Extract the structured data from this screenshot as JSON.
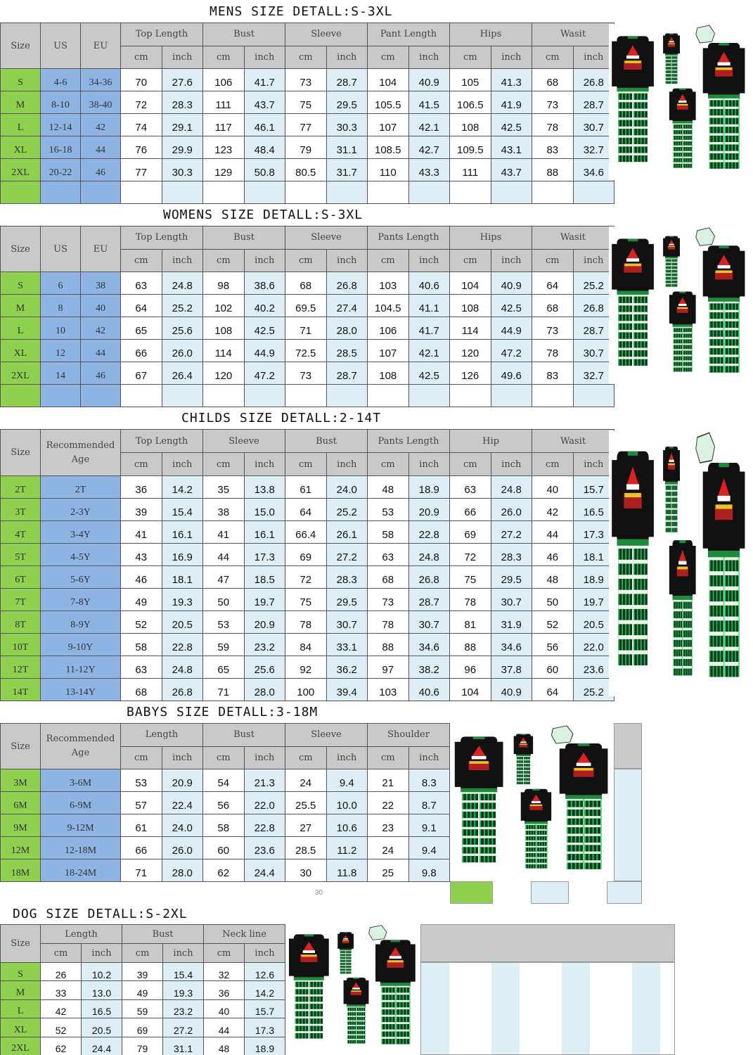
{
  "colors": {
    "header": "#c9c9c9",
    "size": "#8fd14f",
    "us_eu": "#8db4e2",
    "inch": "#ddeef6",
    "shirt": "#111111",
    "plaid": "#1f8a3c"
  },
  "units": [
    "cm",
    "inch"
  ],
  "mens": {
    "title": "MENS SIZE DETALL:S-3XL",
    "fixed": [
      "Size",
      "US",
      "EU"
    ],
    "groups": [
      "Top Length",
      "Bust",
      "Sleeve",
      "Pant Length",
      "Hips",
      "Wasit"
    ],
    "rows": [
      [
        "S",
        "4-6",
        "34-36",
        "70",
        "27.6",
        "106",
        "41.7",
        "73",
        "28.7",
        "104",
        "40.9",
        "105",
        "41.3",
        "68",
        "26.8"
      ],
      [
        "M",
        "8-10",
        "38-40",
        "72",
        "28.3",
        "111",
        "43.7",
        "75",
        "29.5",
        "105.5",
        "41.5",
        "106.5",
        "41.9",
        "73",
        "28.7"
      ],
      [
        "L",
        "12-14",
        "42",
        "74",
        "29.1",
        "117",
        "46.1",
        "77",
        "30.3",
        "107",
        "42.1",
        "108",
        "42.5",
        "78",
        "30.7"
      ],
      [
        "XL",
        "16-18",
        "44",
        "76",
        "29.9",
        "123",
        "48.4",
        "79",
        "31.1",
        "108.5",
        "42.7",
        "109.5",
        "43.1",
        "83",
        "32.7"
      ],
      [
        "2XL",
        "20-22",
        "46",
        "77",
        "30.3",
        "129",
        "50.8",
        "80.5",
        "31.7",
        "110",
        "43.3",
        "111",
        "43.7",
        "88",
        "34.6"
      ],
      [
        "",
        "",
        "",
        "",
        "",
        "",
        "",
        "",
        "",
        "",
        "",
        "",
        "",
        "",
        ""
      ]
    ]
  },
  "womens": {
    "title": "WOMENS SIZE DETALL:S-3XL",
    "fixed": [
      "Size",
      "US",
      "EU"
    ],
    "groups": [
      "Top Length",
      "Bust",
      "Sleeve",
      "Pants Length",
      "Hips",
      "Wasit"
    ],
    "rows": [
      [
        "S",
        "6",
        "38",
        "63",
        "24.8",
        "98",
        "38.6",
        "68",
        "26.8",
        "103",
        "40.6",
        "104",
        "40.9",
        "64",
        "25.2"
      ],
      [
        "M",
        "8",
        "40",
        "64",
        "25.2",
        "102",
        "40.2",
        "69.5",
        "27.4",
        "104.5",
        "41.1",
        "108",
        "42.5",
        "68",
        "26.8"
      ],
      [
        "L",
        "10",
        "42",
        "65",
        "25.6",
        "108",
        "42.5",
        "71",
        "28.0",
        "106",
        "41.7",
        "114",
        "44.9",
        "73",
        "28.7"
      ],
      [
        "XL",
        "12",
        "44",
        "66",
        "26.0",
        "114",
        "44.9",
        "72.5",
        "28.5",
        "107",
        "42.1",
        "120",
        "47.2",
        "78",
        "30.7"
      ],
      [
        "2XL",
        "14",
        "46",
        "67",
        "26.4",
        "120",
        "47.2",
        "73",
        "28.7",
        "108",
        "42.5",
        "126",
        "49.6",
        "83",
        "32.7"
      ],
      [
        "",
        "",
        "",
        "",
        "",
        "",
        "",
        "",
        "",
        "",
        "",
        "",
        "",
        "",
        ""
      ]
    ]
  },
  "childs": {
    "title": "CHILDS SIZE DETALL:2-14T",
    "fixed": [
      "Size",
      "Recommended Age"
    ],
    "groups": [
      "Top Length",
      "Sleeve",
      "Bust",
      "Pants Length",
      "Hip",
      "Wasit"
    ],
    "rows": [
      [
        "2T",
        "2T",
        "36",
        "14.2",
        "35",
        "13.8",
        "61",
        "24.0",
        "48",
        "18.9",
        "63",
        "24.8",
        "40",
        "15.7"
      ],
      [
        "3T",
        "2-3Y",
        "39",
        "15.4",
        "38",
        "15.0",
        "64",
        "25.2",
        "53",
        "20.9",
        "66",
        "26.0",
        "42",
        "16.5"
      ],
      [
        "4T",
        "3-4Y",
        "41",
        "16.1",
        "41",
        "16.1",
        "66.4",
        "26.1",
        "58",
        "22.8",
        "69",
        "27.2",
        "44",
        "17.3"
      ],
      [
        "5T",
        "4-5Y",
        "43",
        "16.9",
        "44",
        "17.3",
        "69",
        "27.2",
        "63",
        "24.8",
        "72",
        "28.3",
        "46",
        "18.1"
      ],
      [
        "6T",
        "5-6Y",
        "46",
        "18.1",
        "47",
        "18.5",
        "72",
        "28.3",
        "68",
        "26.8",
        "75",
        "29.5",
        "48",
        "18.9"
      ],
      [
        "7T",
        "7-8Y",
        "49",
        "19.3",
        "50",
        "19.7",
        "75",
        "29.5",
        "73",
        "28.7",
        "78",
        "30.7",
        "50",
        "19.7"
      ],
      [
        "8T",
        "8-9Y",
        "52",
        "20.5",
        "53",
        "20.9",
        "78",
        "30.7",
        "78",
        "30.7",
        "81",
        "31.9",
        "52",
        "20.5"
      ],
      [
        "10T",
        "9-10Y",
        "58",
        "22.8",
        "59",
        "23.2",
        "84",
        "33.1",
        "88",
        "34.6",
        "88",
        "34.6",
        "56",
        "22.0"
      ],
      [
        "12T",
        "11-12Y",
        "63",
        "24.8",
        "65",
        "25.6",
        "92",
        "36.2",
        "97",
        "38.2",
        "96",
        "37.8",
        "60",
        "23.6"
      ],
      [
        "14T",
        "13-14Y",
        "68",
        "26.8",
        "71",
        "28.0",
        "100",
        "39.4",
        "103",
        "40.6",
        "104",
        "40.9",
        "64",
        "25.2"
      ]
    ]
  },
  "babys": {
    "title": "BABYS SIZE DETALL:3-18M",
    "fixed": [
      "Size",
      "Recommended Age"
    ],
    "groups": [
      "Length",
      "Bust",
      "Sleeve",
      "Shoulder"
    ],
    "rows": [
      [
        "3M",
        "3-6M",
        "53",
        "20.9",
        "54",
        "21.3",
        "24",
        "9.4",
        "21",
        "8.3"
      ],
      [
        "6M",
        "6-9M",
        "57",
        "22.4",
        "56",
        "22.0",
        "25.5",
        "10.0",
        "22",
        "8.7"
      ],
      [
        "9M",
        "9-12M",
        "61",
        "24.0",
        "58",
        "22.8",
        "27",
        "10.6",
        "23",
        "9.1"
      ],
      [
        "12M",
        "12-18M",
        "66",
        "26.0",
        "60",
        "23.6",
        "28.5",
        "11.2",
        "24",
        "9.4"
      ],
      [
        "18M",
        "18-24M",
        "71",
        "28.0",
        "62",
        "24.4",
        "30",
        "11.8",
        "25",
        "9.8"
      ]
    ],
    "footnote": "30"
  },
  "dog": {
    "title": "DOG SIZE DETALL:S-2XL",
    "fixed": [
      "Size"
    ],
    "groups": [
      "Length",
      "Bust",
      "Neck line"
    ],
    "rows": [
      [
        "S",
        "26",
        "10.2",
        "39",
        "15.4",
        "32",
        "12.6"
      ],
      [
        "M",
        "33",
        "13.0",
        "49",
        "19.3",
        "36",
        "14.2"
      ],
      [
        "L",
        "42",
        "16.5",
        "59",
        "23.2",
        "40",
        "15.7"
      ],
      [
        "XL",
        "52",
        "20.5",
        "69",
        "27.2",
        "44",
        "17.3"
      ],
      [
        "2XL",
        "62",
        "24.4",
        "79",
        "31.1",
        "48",
        "18.9"
      ]
    ]
  },
  "images": [
    {
      "icon": "family-pajamas-image"
    }
  ]
}
